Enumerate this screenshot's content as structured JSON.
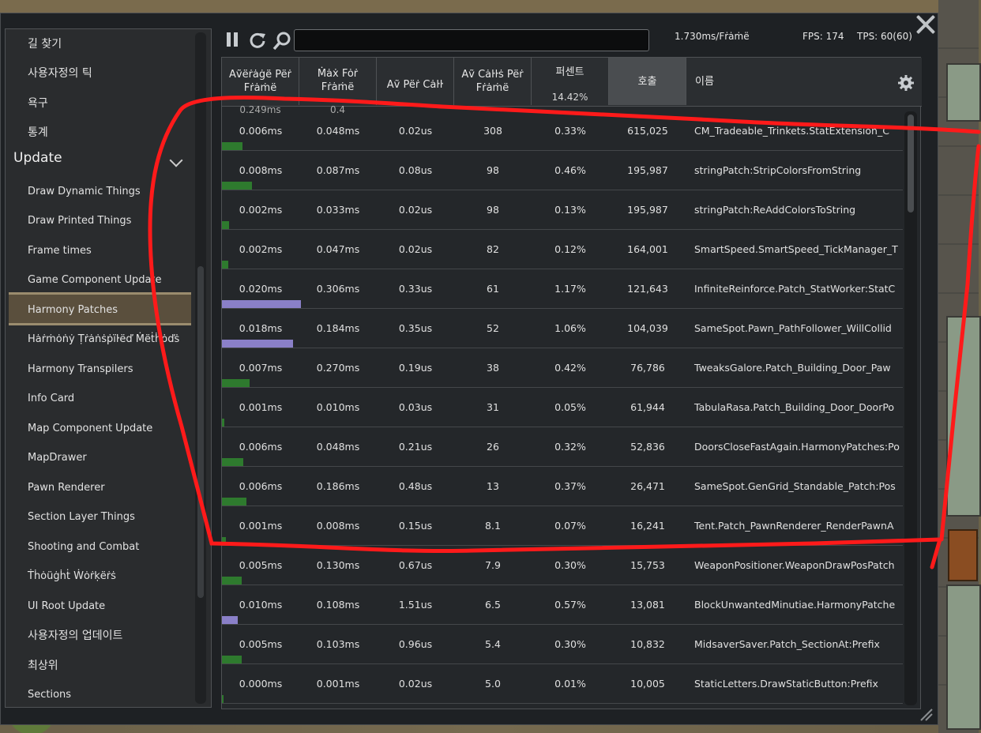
{
  "sidebar": {
    "top_items": [
      "길 찾기",
      "사용자정의 틱",
      "욕구",
      "통계"
    ],
    "section_header": "Update",
    "items": [
      "Draw Dynamic Things",
      "Draw Printed Things",
      "Frame times",
      "Game Component Update",
      "Harmony Patches",
      "Hȧṙṁȯṅẏ Ṭṙȧṅṡṗïŀëď Ṁëṫḣȯďṡ",
      "Harmony Transpilers",
      "Info Card",
      "Map Component Update",
      "MapDrawer",
      "Pawn Renderer",
      "Section Layer Things",
      "Shooting and Combat",
      "Ṫḣȯüġḣṫ Ẇȯṙḳëṙṡ",
      "UI Root Update"
    ],
    "bottom_items": [
      "사용자정의 업데이트",
      "최상위",
      "Sections"
    ],
    "selected_item": "Harmony Patches"
  },
  "toolbar": {
    "search_value": "",
    "frame_time": "1.730ms/Fṙȧṁë",
    "fps": "FPS: 174",
    "tps": "TPS: 60(60)"
  },
  "columns": [
    {
      "label": "Aṽëṙȧġë Pëṙ Fṙȧṁë",
      "sub": ""
    },
    {
      "label": "Ṁȧẋ Fȯṙ Fṙȧṁë",
      "sub": ""
    },
    {
      "label": "Aṽ Pëṙ Cȧŀŀ",
      "sub": ""
    },
    {
      "label": "Aṽ Cȧŀŀṡ Pëṙ Fṙȧṁë",
      "sub": ""
    },
    {
      "label": "퍼센트",
      "sub": "14.42%"
    },
    {
      "label": "호출",
      "sub": ""
    },
    {
      "label": "이름",
      "sub": ""
    }
  ],
  "header_partial": {
    "avg": "0.249ms",
    "max": "0.4"
  },
  "rows": [
    {
      "avg": "0.006ms",
      "max": "0.048ms",
      "per_call": "0.02us",
      "calls": "308",
      "percent": "0.33%",
      "count": "615,025",
      "name": "CM_Tradeable_Trinkets.StatExtension_C",
      "bar": 0.026,
      "bar_color": "#2e7a2e"
    },
    {
      "avg": "0.008ms",
      "max": "0.087ms",
      "per_call": "0.08us",
      "calls": "98",
      "percent": "0.46%",
      "count": "195,987",
      "name": "stringPatch:StripColorsFromString",
      "bar": 0.038,
      "bar_color": "#2e7a2e"
    },
    {
      "avg": "0.002ms",
      "max": "0.033ms",
      "per_call": "0.02us",
      "calls": "98",
      "percent": "0.13%",
      "count": "195,987",
      "name": "stringPatch:ReAddColorsToString",
      "bar": 0.009,
      "bar_color": "#2e7a2e"
    },
    {
      "avg": "0.002ms",
      "max": "0.047ms",
      "per_call": "0.02us",
      "calls": "82",
      "percent": "0.12%",
      "count": "164,001",
      "name": "SmartSpeed.SmartSpeed_TickManager_T",
      "bar": 0.008,
      "bar_color": "#2e7a2e"
    },
    {
      "avg": "0.020ms",
      "max": "0.306ms",
      "per_call": "0.33us",
      "calls": "61",
      "percent": "1.17%",
      "count": "121,643",
      "name": "InfiniteReinforce.Patch_StatWorker:StatC",
      "bar": 0.1,
      "bar_color": "#8a80c8"
    },
    {
      "avg": "0.018ms",
      "max": "0.184ms",
      "per_call": "0.35us",
      "calls": "52",
      "percent": "1.06%",
      "count": "104,039",
      "name": "SameSpot.Pawn_PathFollower_WillCollid",
      "bar": 0.09,
      "bar_color": "#8a80c8"
    },
    {
      "avg": "0.007ms",
      "max": "0.270ms",
      "per_call": "0.19us",
      "calls": "38",
      "percent": "0.42%",
      "count": "76,786",
      "name": "TweaksGalore.Patch_Building_Door_Paw",
      "bar": 0.035,
      "bar_color": "#2e7a2e"
    },
    {
      "avg": "0.001ms",
      "max": "0.010ms",
      "per_call": "0.03us",
      "calls": "31",
      "percent": "0.05%",
      "count": "61,944",
      "name": "TabulaRasa.Patch_Building_Door_DoorPo",
      "bar": 0.003,
      "bar_color": "#2e7a2e"
    },
    {
      "avg": "0.006ms",
      "max": "0.048ms",
      "per_call": "0.21us",
      "calls": "26",
      "percent": "0.32%",
      "count": "52,836",
      "name": "DoorsCloseFastAgain.HarmonyPatches:Po",
      "bar": 0.027,
      "bar_color": "#2e7a2e"
    },
    {
      "avg": "0.006ms",
      "max": "0.186ms",
      "per_call": "0.48us",
      "calls": "13",
      "percent": "0.37%",
      "count": "26,471",
      "name": "SameSpot.GenGrid_Standable_Patch:Pos",
      "bar": 0.031,
      "bar_color": "#2e7a2e"
    },
    {
      "avg": "0.001ms",
      "max": "0.008ms",
      "per_call": "0.15us",
      "calls": "8.1",
      "percent": "0.07%",
      "count": "16,241",
      "name": "Tent.Patch_PawnRenderer_RenderPawnA",
      "bar": 0.005,
      "bar_color": "#2e7a2e"
    },
    {
      "avg": "0.005ms",
      "max": "0.130ms",
      "per_call": "0.67us",
      "calls": "7.9",
      "percent": "0.30%",
      "count": "15,753",
      "name": "WeaponPositioner.WeaponDrawPosPatch",
      "bar": 0.025,
      "bar_color": "#2e7a2e"
    },
    {
      "avg": "0.010ms",
      "max": "0.108ms",
      "per_call": "1.51us",
      "calls": "6.5",
      "percent": "0.57%",
      "count": "13,081",
      "name": "BlockUnwantedMinutiae.HarmonyPatche",
      "bar": 0.02,
      "bar_color": "#8a80c8"
    },
    {
      "avg": "0.005ms",
      "max": "0.103ms",
      "per_call": "0.96us",
      "calls": "5.4",
      "percent": "0.30%",
      "count": "10,832",
      "name": "MidsaverSaver.Patch_SectionAt:Prefix",
      "bar": 0.025,
      "bar_color": "#2e7a2e"
    },
    {
      "avg": "0.000ms",
      "max": "0.001ms",
      "per_call": "0.02us",
      "calls": "5.0",
      "percent": "0.01%",
      "count": "10,005",
      "name": "StaticLetters.DrawStaticButton:Prefix",
      "bar": 0.0,
      "bar_color": "#2e7a2e"
    }
  ],
  "annotation_color": "#ff1a1a"
}
